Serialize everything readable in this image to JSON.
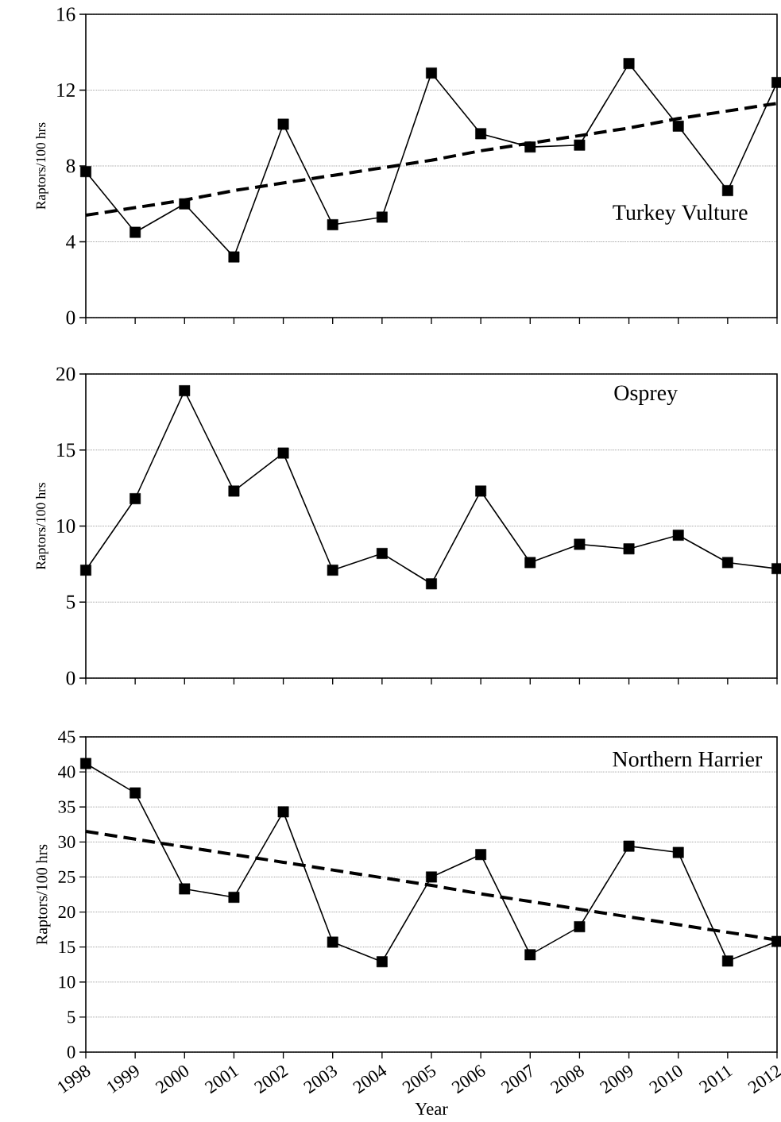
{
  "chart_data": [
    {
      "type": "line",
      "ylabel": "Raptors/100 hrs",
      "categories": [
        "1998",
        "1999",
        "2000",
        "2001",
        "2002",
        "2003",
        "2004",
        "2005",
        "2006",
        "2007",
        "2008",
        "2009",
        "2010",
        "2011",
        "2012"
      ],
      "series": [
        {
          "color": "#000000",
          "marker": "square",
          "line_style": "solid",
          "values": [
            7.7,
            4.5,
            6.0,
            3.2,
            10.2,
            4.9,
            5.3,
            12.9,
            9.7,
            9.0,
            9.1,
            13.4,
            10.1,
            6.7,
            12.4
          ]
        },
        {
          "color": "#000000",
          "marker": "none",
          "line_style": "dashed",
          "values": [
            5.4,
            5.8,
            6.2,
            6.7,
            7.1,
            7.5,
            7.9,
            8.3,
            8.8,
            9.2,
            9.6,
            10.0,
            10.5,
            10.9,
            11.3
          ]
        }
      ],
      "ylim": [
        0,
        16
      ],
      "yticks": [
        0,
        4,
        8,
        12,
        16
      ],
      "grid": "y",
      "tick_labels": "y",
      "annotations": [
        "Turkey Vulture"
      ]
    },
    {
      "type": "line",
      "ylabel": "Raptors/100 hrs",
      "categories": [
        "1998",
        "1999",
        "2000",
        "2001",
        "2002",
        "2003",
        "2004",
        "2005",
        "2006",
        "2007",
        "2008",
        "2009",
        "2010",
        "2011",
        "2012"
      ],
      "series": [
        {
          "color": "#000000",
          "marker": "square",
          "line_style": "solid",
          "values": [
            7.1,
            11.8,
            18.9,
            12.3,
            14.8,
            7.1,
            8.2,
            6.2,
            12.3,
            7.6,
            8.8,
            8.5,
            9.4,
            7.6,
            7.2
          ]
        }
      ],
      "ylim": [
        0,
        20
      ],
      "yticks": [
        0,
        5,
        10,
        15,
        20
      ],
      "grid": "y",
      "tick_labels": "y",
      "annotations": [
        "Osprey"
      ]
    },
    {
      "type": "line",
      "xlabel": "Year",
      "ylabel": "Raptors/100 hrs",
      "categories": [
        "1998",
        "1999",
        "2000",
        "2001",
        "2002",
        "2003",
        "2004",
        "2005",
        "2006",
        "2007",
        "2008",
        "2009",
        "2010",
        "2011",
        "2012"
      ],
      "series": [
        {
          "color": "#000000",
          "marker": "square",
          "line_style": "solid",
          "values": [
            41.2,
            37.0,
            23.3,
            22.1,
            34.3,
            15.7,
            12.9,
            25.0,
            28.2,
            13.9,
            17.9,
            29.4,
            28.5,
            13.0,
            15.8
          ]
        },
        {
          "color": "#000000",
          "marker": "none",
          "line_style": "dashed",
          "values": [
            31.5,
            30.4,
            29.3,
            28.2,
            27.1,
            26.0,
            24.9,
            23.8,
            22.6,
            21.5,
            20.4,
            19.3,
            18.2,
            17.1,
            16.0
          ]
        }
      ],
      "ylim": [
        0,
        45
      ],
      "yticks": [
        0,
        5,
        10,
        15,
        20,
        25,
        30,
        35,
        40,
        45
      ],
      "grid": "y",
      "annotations": [
        "Northern Harrier"
      ]
    }
  ]
}
